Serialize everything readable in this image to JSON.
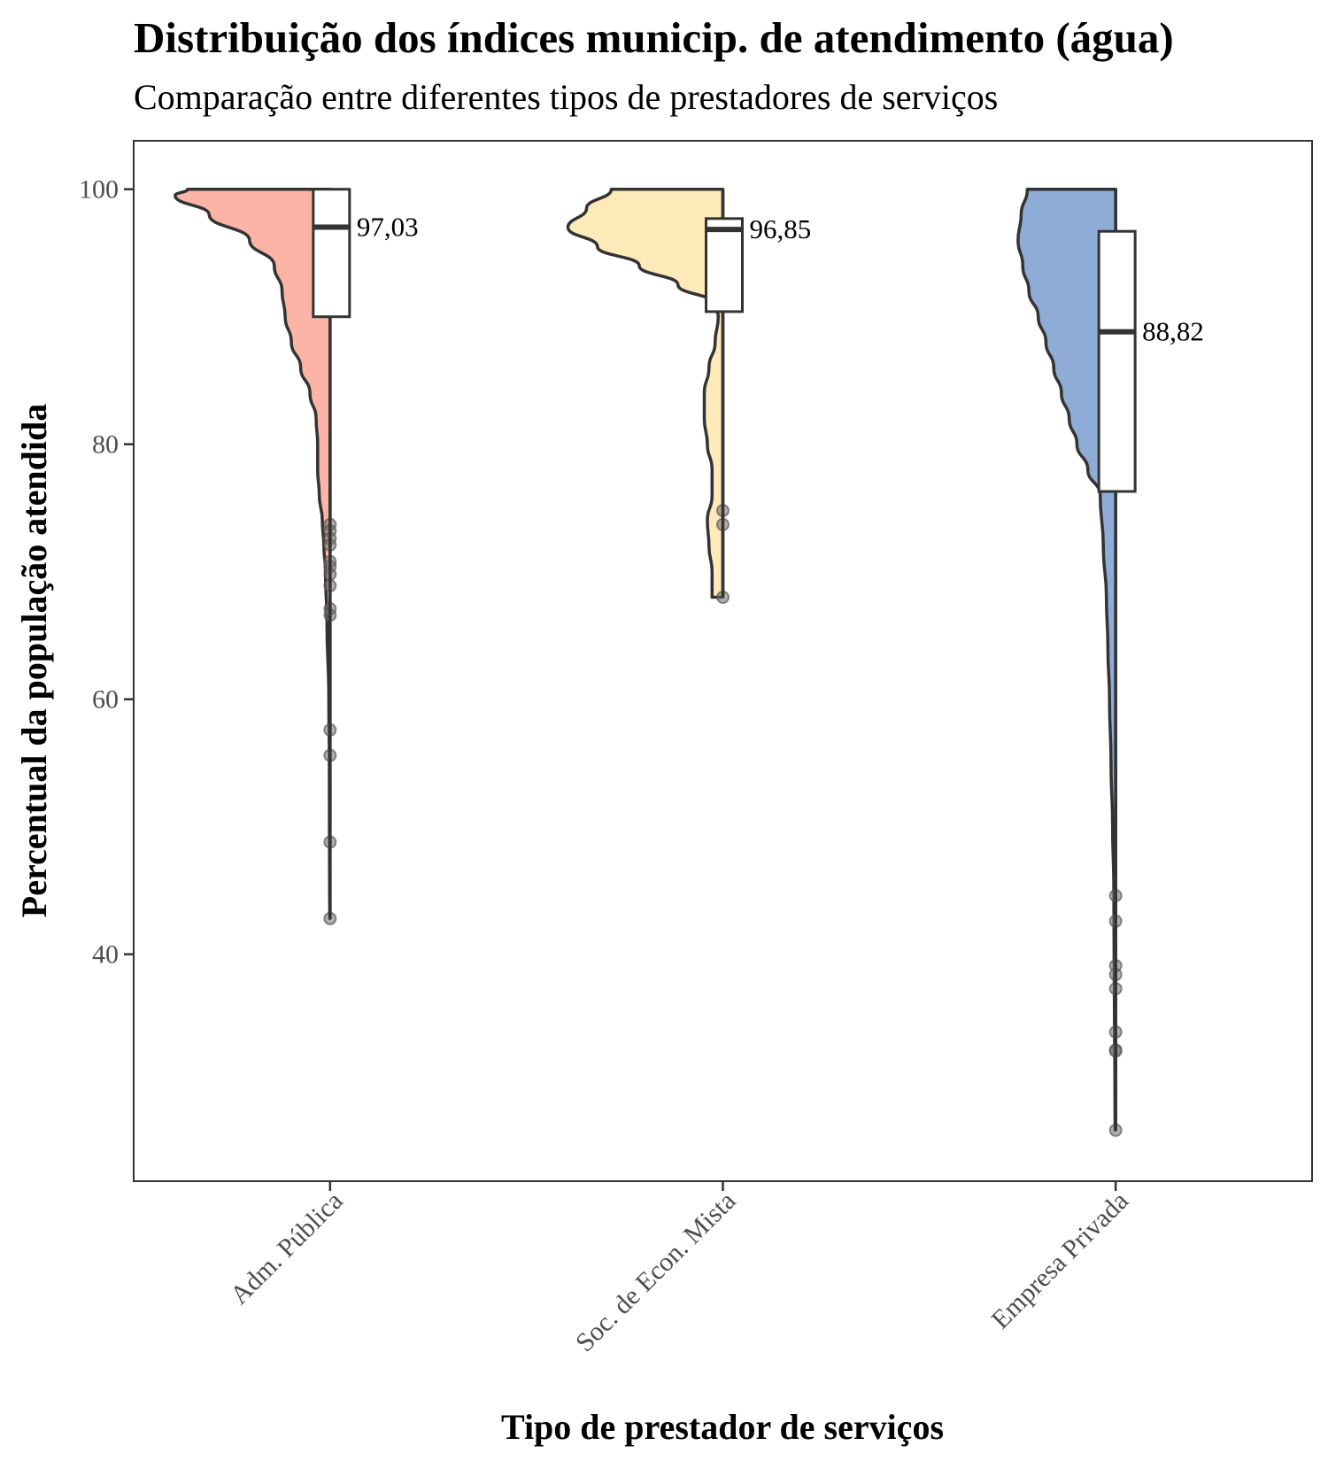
{
  "chart_data": {
    "type": "violin",
    "title": "Distribuição dos índices municip. de atendimento (água)",
    "subtitle": "Comparação entre diferentes tipos de prestadores de serviços",
    "xlabel": "Tipo de prestador de serviços",
    "ylabel": "Percentual da população atendida",
    "ylim": [
      22.2,
      103.8
    ],
    "yticks": [
      40,
      60,
      80,
      100
    ],
    "grid": false,
    "legend": "none",
    "categories": [
      "Adm. Pública",
      "Soc. de Econ. Mista",
      "Empresa Privada"
    ],
    "series": [
      {
        "category": "Adm. Pública",
        "color": "#FBB4A6",
        "box": {
          "min": 42.8,
          "q1": 90.0,
          "median": 97.03,
          "q3": 100.0,
          "max": 100.0
        },
        "median_label": "97,03",
        "density": [
          [
            100,
            0.92
          ],
          [
            99.5,
            1.0
          ],
          [
            98,
            0.78
          ],
          [
            96,
            0.52
          ],
          [
            94,
            0.36
          ],
          [
            92,
            0.31
          ],
          [
            90,
            0.29
          ],
          [
            88,
            0.25
          ],
          [
            86,
            0.19
          ],
          [
            84,
            0.13
          ],
          [
            82,
            0.09
          ],
          [
            80,
            0.08
          ],
          [
            78,
            0.08
          ],
          [
            76,
            0.07
          ],
          [
            74,
            0.05
          ],
          [
            72,
            0.04
          ],
          [
            70,
            0.03
          ],
          [
            66,
            0.02
          ],
          [
            60,
            0.008
          ],
          [
            55,
            0.005
          ],
          [
            50,
            0.004
          ],
          [
            45,
            0.003
          ],
          [
            42.8,
            0.002
          ]
        ],
        "outliers": [
          73.7,
          73.2,
          72.6,
          72.1,
          70.8,
          70.4,
          69.8,
          68.9,
          67.1,
          66.6,
          57.6,
          55.6,
          48.8,
          42.8
        ]
      },
      {
        "category": "Soc. de Econ. Mista",
        "color": "#FEE9B9",
        "box": {
          "min": 68.0,
          "q1": 90.4,
          "median": 96.85,
          "q3": 97.7,
          "max": 100.0
        },
        "median_label": "96,85",
        "density": [
          [
            100,
            0.72
          ],
          [
            98.5,
            0.88
          ],
          [
            97,
            1.0
          ],
          [
            95.5,
            0.81
          ],
          [
            94,
            0.54
          ],
          [
            92.5,
            0.29
          ],
          [
            91,
            0.05
          ],
          [
            90,
            0.03
          ],
          [
            88,
            0.05
          ],
          [
            86,
            0.09
          ],
          [
            84,
            0.12
          ],
          [
            82,
            0.12
          ],
          [
            80,
            0.1
          ],
          [
            78,
            0.07
          ],
          [
            76,
            0.07
          ],
          [
            74,
            0.1
          ],
          [
            72,
            0.09
          ],
          [
            70,
            0.07
          ],
          [
            68,
            0.07
          ]
        ],
        "outliers": [
          74.8,
          73.7,
          68.0
        ]
      },
      {
        "category": "Empresa Privada",
        "color": "#8EACD5",
        "box": {
          "min": 26.2,
          "q1": 76.3,
          "median": 88.82,
          "q3": 96.7,
          "max": 100.0
        },
        "median_label": "88,82",
        "density": [
          [
            100,
            0.57
          ],
          [
            98,
            0.61
          ],
          [
            96,
            0.63
          ],
          [
            94,
            0.6
          ],
          [
            92,
            0.56
          ],
          [
            90,
            0.5
          ],
          [
            88,
            0.45
          ],
          [
            86,
            0.4
          ],
          [
            84,
            0.35
          ],
          [
            82,
            0.3
          ],
          [
            80,
            0.25
          ],
          [
            78,
            0.18
          ],
          [
            76,
            0.1
          ],
          [
            72,
            0.08
          ],
          [
            68,
            0.06
          ],
          [
            64,
            0.05
          ],
          [
            60,
            0.04
          ],
          [
            55,
            0.03
          ],
          [
            50,
            0.02
          ],
          [
            45,
            0.012
          ],
          [
            40,
            0.01
          ],
          [
            35,
            0.008
          ],
          [
            30,
            0.005
          ],
          [
            26.2,
            0.004
          ]
        ],
        "outliers": [
          44.6,
          42.6,
          39.1,
          38.4,
          37.3,
          33.9,
          32.5,
          32.4,
          26.2
        ]
      }
    ]
  }
}
